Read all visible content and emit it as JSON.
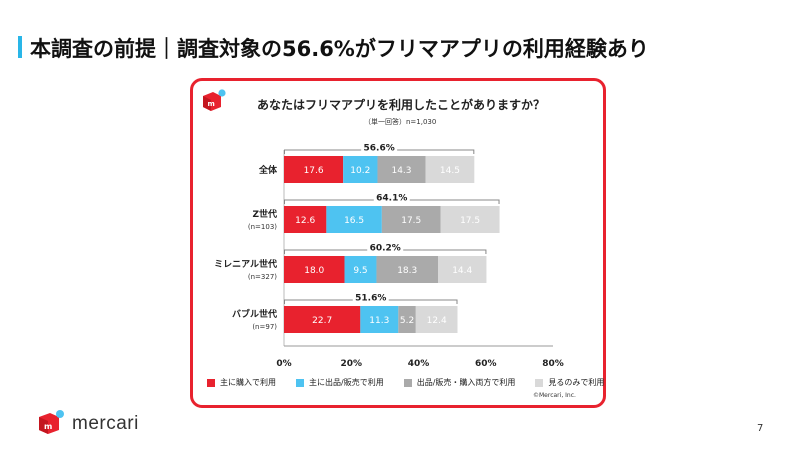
{
  "header": {
    "title": "本調査の前提｜調査対象の56.6%がフリマアプリの利用経験あり",
    "accent_color": "#29b6e8"
  },
  "panel": {
    "border_color": "#e8222e",
    "logo_icon": "mercari-box-icon",
    "question": "あなたはフリマアプリを利用したことがありますか？",
    "note": "（単一回答）n=1,030"
  },
  "chart_data": {
    "type": "bar",
    "orientation": "horizontal",
    "stacked": true,
    "categories": [
      {
        "label": "全体",
        "sublabel": "",
        "total_label": "56.6%"
      },
      {
        "label": "Z世代",
        "sublabel": "(n=103)",
        "total_label": "64.1%"
      },
      {
        "label": "ミレニアル世代",
        "sublabel": "(n=327)",
        "total_label": "60.2%"
      },
      {
        "label": "バブル世代",
        "sublabel": "(n=97)",
        "total_label": "51.6%"
      }
    ],
    "series": [
      {
        "name": "主に購入で利用",
        "color": "#e8222e",
        "label_color": "#ffffff",
        "values": [
          17.6,
          12.6,
          18.0,
          22.7
        ]
      },
      {
        "name": "主に出品/販売で利用",
        "color": "#4ec3f1",
        "label_color": "#ffffff",
        "values": [
          10.2,
          16.5,
          9.5,
          11.3
        ]
      },
      {
        "name": "出品/販売・購入両方で利用",
        "color": "#aaaaaa",
        "label_color": "#ffffff",
        "values": [
          14.3,
          17.5,
          18.3,
          5.2
        ]
      },
      {
        "name": "見るのみで利用",
        "color": "#d9d9d9",
        "label_color": "#ffffff",
        "values": [
          14.5,
          17.5,
          14.4,
          12.4
        ]
      }
    ],
    "value_labels": [
      [
        "17.6",
        "12.6",
        "18.0",
        "22.7"
      ],
      [
        "10.2",
        "16.5",
        "9.5",
        "11.3"
      ],
      [
        "14.3",
        "17.5",
        "18.3",
        "5.2"
      ],
      [
        "14.5",
        "17.5",
        "14.4",
        "12.4"
      ]
    ],
    "xlim": [
      0,
      80
    ],
    "ticks": [
      0,
      20,
      40,
      60,
      80
    ],
    "tick_labels": [
      "0%",
      "20%",
      "40%",
      "60%",
      "80%"
    ],
    "legend_position": "bottom"
  },
  "footer": {
    "copyright": "©Mercari, Inc.",
    "brand_name": "mercari",
    "brand_icon": "mercari-logo-icon",
    "page_number": "7"
  }
}
